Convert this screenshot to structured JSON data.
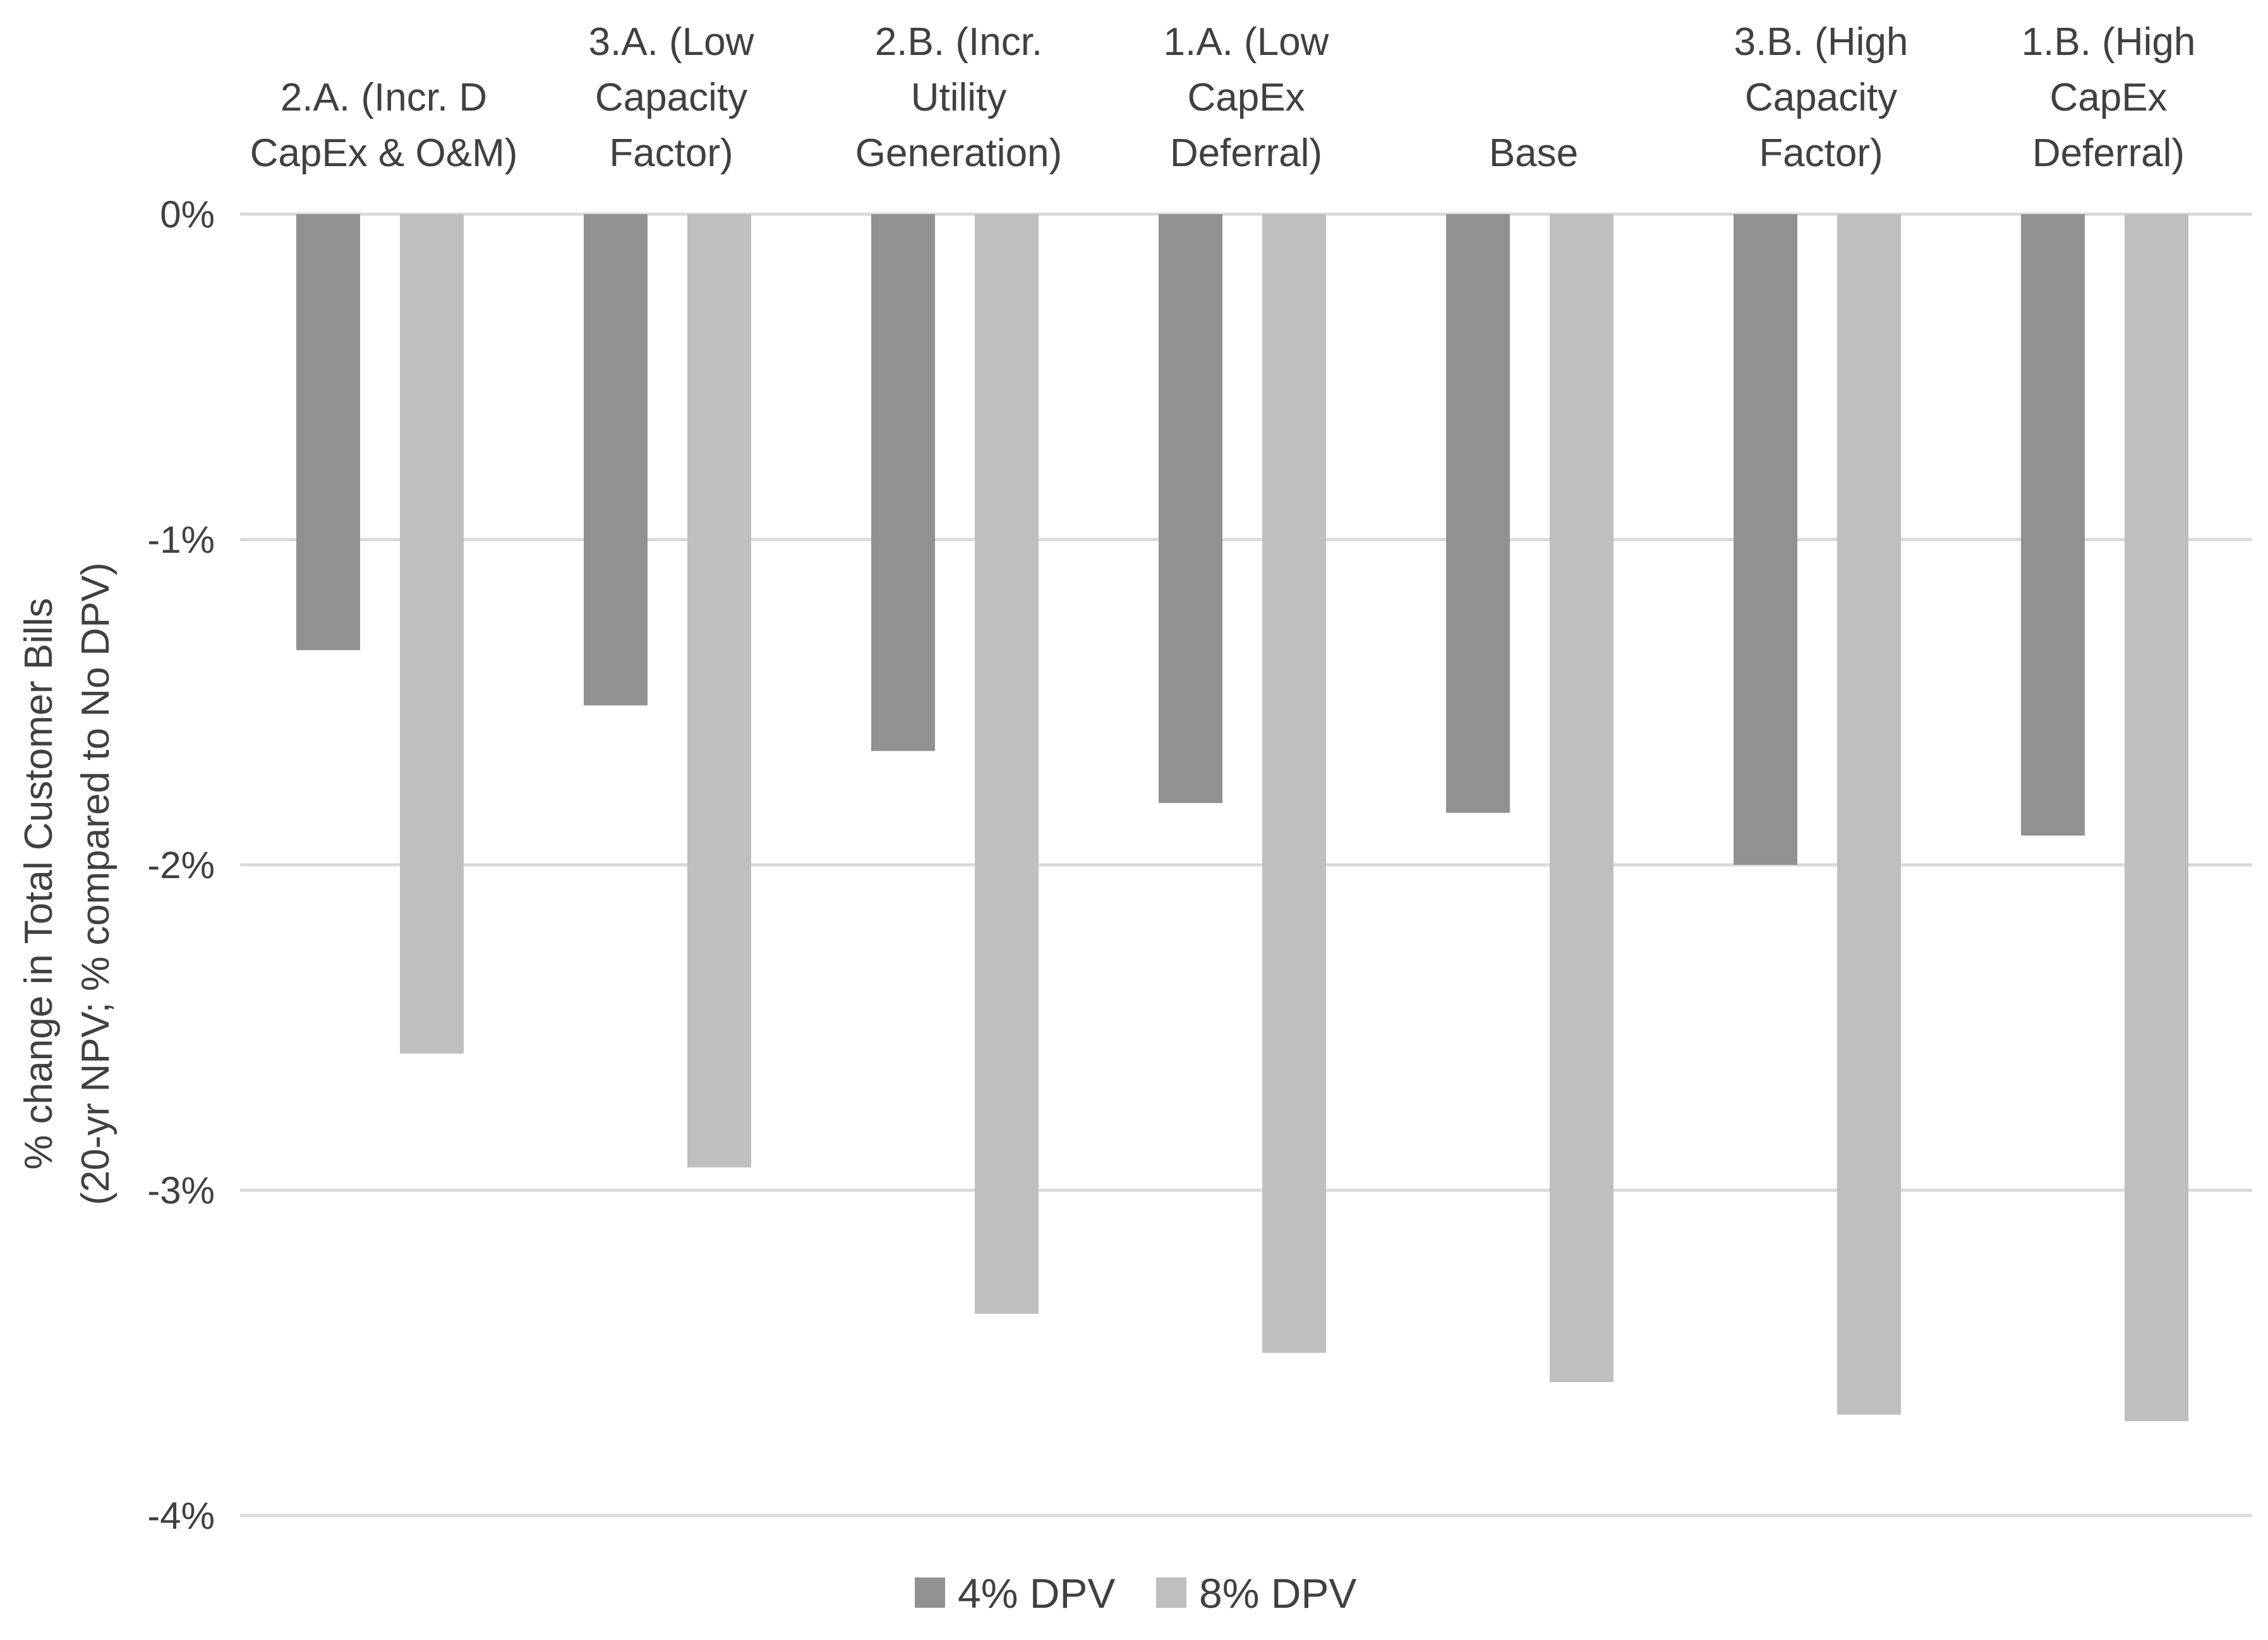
{
  "chart_data": {
    "type": "bar",
    "title": "",
    "xlabel": "",
    "ylabel_lines": [
      "% change in Total Customer Bills",
      "(20-yr NPV; % compared to No DPV)"
    ],
    "categories": [
      [
        "2.A. (Incr. D",
        "CapEx & O&M)"
      ],
      [
        "3.A. (Low",
        "Capacity",
        "Factor)"
      ],
      [
        "2.B. (Incr.",
        "Utility",
        "Generation)"
      ],
      [
        "1.A. (Low",
        "CapEx",
        "Deferral)"
      ],
      [
        "Base"
      ],
      [
        "3.B. (High",
        "Capacity",
        "Factor)"
      ],
      [
        "1.B. (High",
        "CapEx",
        "Deferral)"
      ]
    ],
    "series": [
      {
        "name": "4% DPV",
        "color": "#919191",
        "values": [
          -1.34,
          -1.51,
          -1.65,
          -1.81,
          -1.84,
          -2.0,
          -1.91
        ]
      },
      {
        "name": "8% DPV",
        "color": "#bfbfbf",
        "values": [
          -2.58,
          -2.93,
          -3.38,
          -3.5,
          -3.59,
          -3.69,
          -3.71
        ]
      }
    ],
    "ylim": [
      -4,
      0
    ],
    "yticks": [
      0,
      -1,
      -2,
      -3,
      -4
    ],
    "ytick_labels": [
      "0%",
      "-1%",
      "-2%",
      "-3%",
      "-4%"
    ],
    "grid": true,
    "gridline_color": "#d9d9d9",
    "category_axis_position": "top",
    "legend_position": "bottom-center"
  }
}
